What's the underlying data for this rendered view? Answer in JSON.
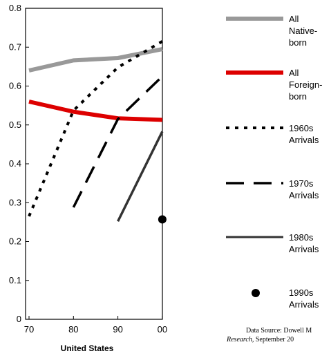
{
  "chart_data": {
    "type": "line",
    "title": "",
    "xlabel": "United States",
    "ylabel": "",
    "categories": [
      "70",
      "80",
      "90",
      "00"
    ],
    "ylim": [
      0,
      0.8
    ],
    "yticks": [
      "0",
      "0.1",
      "0.2",
      "0.3",
      "0.4",
      "0.5",
      "0.6",
      "0.7",
      "0.8"
    ],
    "grid": false,
    "legend_position": "right",
    "series": [
      {
        "name": "All Native-born",
        "legend_lines": [
          "All",
          "Native-",
          "born"
        ],
        "style": "solid-thick",
        "color": "#999999",
        "points": [
          [
            0,
            0.64
          ],
          [
            1,
            0.666
          ],
          [
            2,
            0.672
          ],
          [
            3,
            0.695
          ]
        ]
      },
      {
        "name": "All Foreign-born",
        "legend_lines": [
          "All",
          "Foreign-",
          "born"
        ],
        "style": "solid-thick",
        "color": "#dd0000",
        "points": [
          [
            0,
            0.56
          ],
          [
            1,
            0.534
          ],
          [
            2,
            0.517
          ],
          [
            3,
            0.513
          ]
        ]
      },
      {
        "name": "1960s Arrivals",
        "legend_lines": [
          "1960s",
          "Arrivals"
        ],
        "style": "dotted",
        "color": "#000000",
        "points": [
          [
            0,
            0.265
          ],
          [
            1,
            0.537
          ],
          [
            2,
            0.648
          ],
          [
            3,
            0.715
          ]
        ]
      },
      {
        "name": "1970s Arrivals",
        "legend_lines": [
          "1970s",
          "Arrivals"
        ],
        "style": "dashed",
        "color": "#000000",
        "points": [
          [
            1,
            0.288
          ],
          [
            2,
            0.515
          ],
          [
            3,
            0.625
          ]
        ]
      },
      {
        "name": "1980s Arrivals",
        "legend_lines": [
          "1980s",
          "Arrivals"
        ],
        "style": "solid",
        "color": "#333333",
        "points": [
          [
            2,
            0.252
          ],
          [
            3,
            0.483
          ]
        ]
      },
      {
        "name": "1990s Arrivals",
        "legend_lines": [
          "1990s",
          "Arrivals"
        ],
        "style": "marker",
        "color": "#000000",
        "points": [
          [
            3,
            0.257
          ]
        ]
      }
    ],
    "source_lines": [
      "Data Source: Dowell M",
      "Research, September 20"
    ]
  }
}
